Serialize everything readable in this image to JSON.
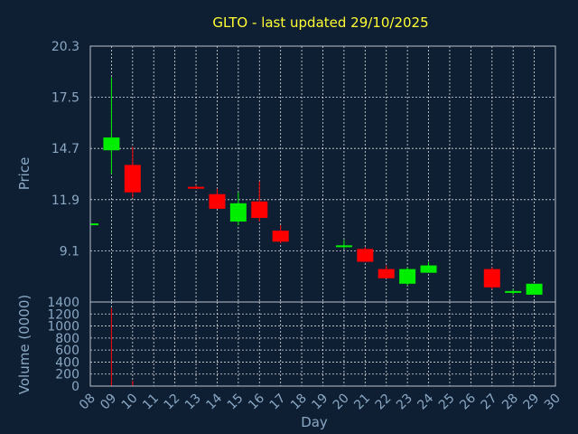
{
  "colors": {
    "background": "#0f1f33",
    "title": "#ffff33",
    "axis_text": "#8aa8c4",
    "up": "#00ee00",
    "down": "#ff0000",
    "grid": "#ffffff"
  },
  "chart_data": [
    {
      "type": "candlestick",
      "title": "GLTO - last updated 29/10/2025",
      "xlabel": "Day",
      "ylabel": "Price",
      "ylim": [
        6.3,
        20.3
      ],
      "yticks": [
        "20.3",
        "17.5",
        "14.7",
        "11.9",
        "9.1"
      ],
      "ytick_values": [
        20.3,
        17.5,
        14.7,
        11.9,
        9.1
      ],
      "xlim": [
        8,
        30
      ],
      "xticks": [
        "08",
        "09",
        "10",
        "11",
        "12",
        "13",
        "14",
        "15",
        "16",
        "17",
        "18",
        "19",
        "20",
        "21",
        "22",
        "23",
        "24",
        "25",
        "26",
        "27",
        "28",
        "29",
        "30"
      ],
      "grid": true,
      "candles": [
        {
          "day": 8,
          "open": 10.5,
          "high": 10.6,
          "low": 10.4,
          "close": 10.6
        },
        {
          "day": 9,
          "open": 14.6,
          "high": 18.6,
          "low": 13.3,
          "close": 15.3
        },
        {
          "day": 10,
          "open": 13.8,
          "high": 14.8,
          "low": 12.0,
          "close": 12.3
        },
        {
          "day": 13,
          "open": 12.6,
          "high": 12.7,
          "low": 12.5,
          "close": 12.5
        },
        {
          "day": 14,
          "open": 12.2,
          "high": 12.5,
          "low": 11.4,
          "close": 11.4
        },
        {
          "day": 15,
          "open": 10.7,
          "high": 12.3,
          "low": 10.5,
          "close": 11.7
        },
        {
          "day": 16,
          "open": 11.8,
          "high": 12.9,
          "low": 10.7,
          "close": 10.9
        },
        {
          "day": 17,
          "open": 10.2,
          "high": 10.5,
          "low": 9.5,
          "close": 9.6
        },
        {
          "day": 20,
          "open": 9.3,
          "high": 9.7,
          "low": 9.2,
          "close": 9.4
        },
        {
          "day": 21,
          "open": 9.2,
          "high": 9.3,
          "low": 8.5,
          "close": 8.5
        },
        {
          "day": 22,
          "open": 8.1,
          "high": 8.3,
          "low": 7.6,
          "close": 7.6
        },
        {
          "day": 23,
          "open": 7.3,
          "high": 8.2,
          "low": 7.2,
          "close": 8.1
        },
        {
          "day": 24,
          "open": 7.9,
          "high": 8.5,
          "low": 7.9,
          "close": 8.3
        },
        {
          "day": 27,
          "open": 8.1,
          "high": 8.2,
          "low": 7.0,
          "close": 7.1
        },
        {
          "day": 28,
          "open": 6.8,
          "high": 7.0,
          "low": 6.7,
          "close": 6.9
        },
        {
          "day": 29,
          "open": 6.7,
          "high": 7.3,
          "low": 6.7,
          "close": 7.3
        }
      ]
    },
    {
      "type": "bar",
      "xlabel": "Day",
      "ylabel": "Volume (0000)",
      "ylim": [
        0,
        1400
      ],
      "yticks": [
        "1400",
        "1200",
        "1000",
        "800",
        "600",
        "400",
        "200",
        "0"
      ],
      "ytick_values": [
        1400,
        1200,
        1000,
        800,
        600,
        400,
        200,
        0
      ],
      "grid": true,
      "bars": [
        {
          "day": 9,
          "value": 1300,
          "color": "#ff0000"
        },
        {
          "day": 10,
          "value": 90,
          "color": "#ff0000"
        }
      ]
    }
  ]
}
